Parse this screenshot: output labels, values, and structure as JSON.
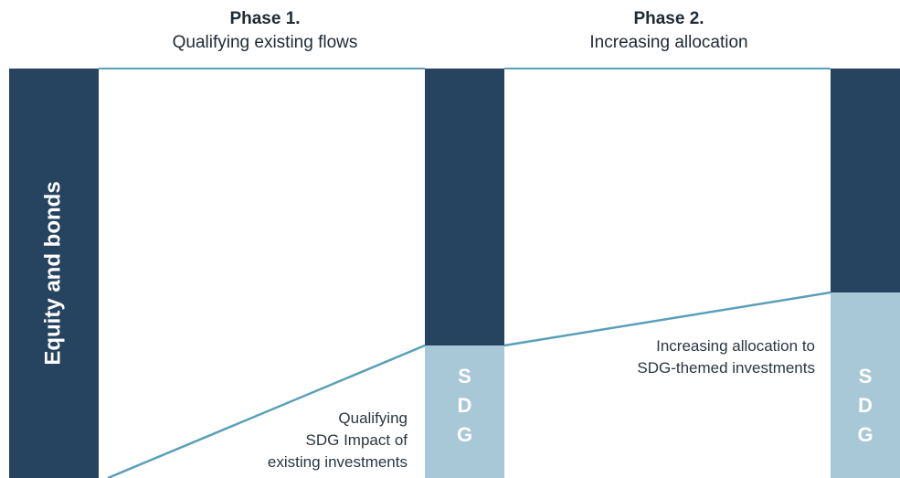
{
  "phases": [
    {
      "number": "Phase 1.",
      "title": "Qualifying existing flows"
    },
    {
      "number": "Phase 2.",
      "title": "Increasing allocation"
    }
  ],
  "columns": {
    "base_label": "Equity and bonds",
    "sdg_letters_phase1": [
      "S",
      "D",
      "G"
    ],
    "sdg_letters_phase2": [
      "S",
      "D",
      "G"
    ]
  },
  "notes": {
    "qualifying_lines": [
      "Qualifying",
      "SDG Impact of",
      "existing investments"
    ],
    "increasing_lines": [
      "Increasing allocation to",
      "SDG-themed investments"
    ]
  },
  "colors": {
    "dark_navy": "#26435f",
    "light_blue": "#a8c8d8",
    "line_teal": "#5a9fb8"
  }
}
